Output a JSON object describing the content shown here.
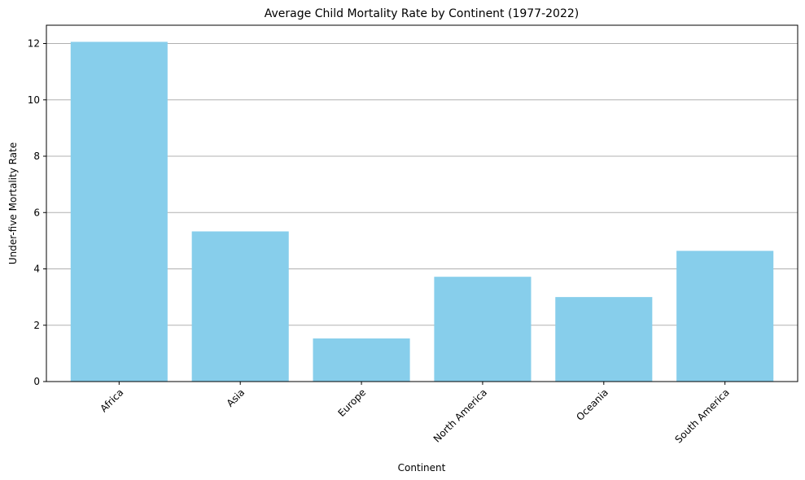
{
  "chart_data": {
    "type": "bar",
    "title": "Average Child Mortality Rate by Continent (1977-2022)",
    "xlabel": "Continent",
    "ylabel": "Under-five Mortality Rate",
    "categories": [
      "Africa",
      "Asia",
      "Europe",
      "North America",
      "Oceania",
      "South America"
    ],
    "values": [
      12.06,
      5.33,
      1.53,
      3.72,
      3.0,
      4.64
    ],
    "ylim": [
      0,
      12.65
    ],
    "yticks": [
      0,
      2,
      4,
      6,
      8,
      10,
      12
    ],
    "grid": "y",
    "bar_color": "#87ceeb",
    "grid_color": "#b0b0b0"
  }
}
